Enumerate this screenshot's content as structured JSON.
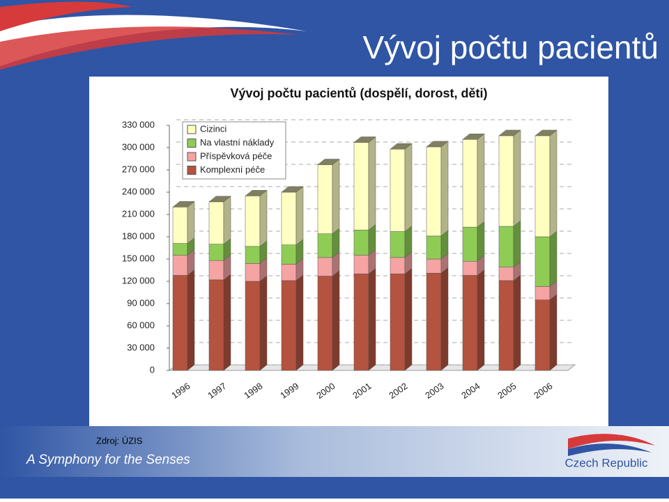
{
  "slide": {
    "title": "Vývoj počtu pacientů",
    "source": "Zdroj: ÚZIS",
    "slogan": "A Symphony for the Senses",
    "logo": "Czech Republic"
  },
  "chart_data": {
    "type": "stacked-bar-3d",
    "title": "Vývoj počtu pacientů (dospělí, dorost, děti)",
    "categories": [
      "1996",
      "1997",
      "1998",
      "1999",
      "2000",
      "2001",
      "2002",
      "2003",
      "2004",
      "2005",
      "2006"
    ],
    "series": [
      {
        "name": "Komplexní péče",
        "color": "#b4533f",
        "values": [
          128000,
          122000,
          120000,
          121000,
          127000,
          130000,
          130000,
          131000,
          128000,
          121000,
          95000
        ]
      },
      {
        "name": "Příspěvková péče",
        "color": "#f5a3a3",
        "values": [
          27000,
          26000,
          24000,
          22000,
          25000,
          25000,
          22000,
          19000,
          19000,
          18000,
          18000
        ]
      },
      {
        "name": "Na vlastní náklady",
        "color": "#8fcc55",
        "values": [
          16000,
          22000,
          23000,
          26000,
          32000,
          34000,
          35000,
          31000,
          46000,
          55000,
          67000
        ]
      },
      {
        "name": "Cizinci",
        "color": "#ffffc2",
        "values": [
          49000,
          57000,
          68000,
          71000,
          93000,
          118000,
          111000,
          120000,
          118000,
          122000,
          136000
        ]
      }
    ],
    "ylim": [
      0,
      330000
    ],
    "yticks": [
      0,
      {
        "value": 30000,
        "label": "30 000"
      },
      {
        "value": 60000,
        "label": "60 000"
      },
      {
        "value": 90000,
        "label": "90 000"
      },
      {
        "value": 120000,
        "label": "120 000"
      },
      {
        "value": 150000,
        "label": "150 000"
      },
      {
        "value": 180000,
        "label": "180 000"
      },
      {
        "value": 210000,
        "label": "210 000"
      },
      {
        "value": 240000,
        "label": "240 000"
      },
      {
        "value": 270000,
        "label": "270 000"
      },
      {
        "value": 300000,
        "label": "300 000"
      },
      {
        "value": 330000,
        "label": "330 000"
      }
    ],
    "grid": true,
    "legend": "top-left"
  }
}
